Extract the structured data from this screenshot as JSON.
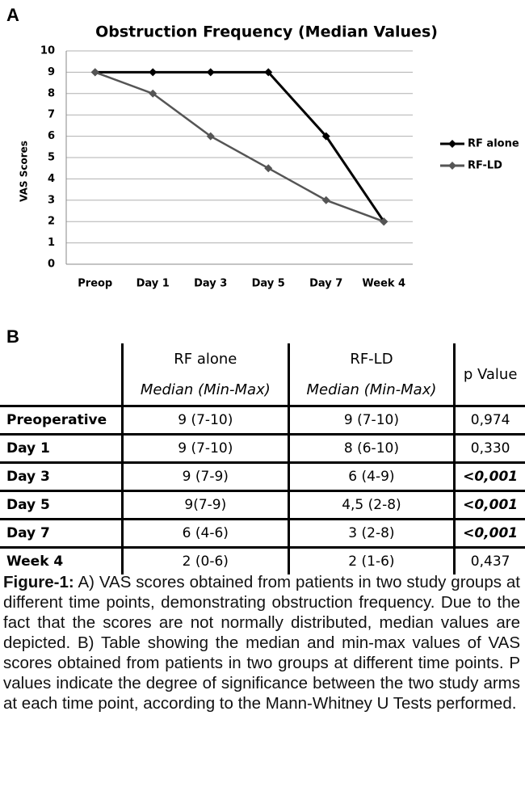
{
  "panel_a": "A",
  "chart_data": {
    "type": "line",
    "title": "Obstruction Frequency (Median Values)",
    "y_label": "VAS Scores",
    "categories": [
      "Preop",
      "Day 1",
      "Day 3",
      "Day 5",
      "Day 7",
      "Week 4"
    ],
    "series": [
      {
        "name": "RF alone",
        "color": "#000000",
        "values": [
          9,
          9,
          9,
          9,
          6,
          2
        ]
      },
      {
        "name": "RF-LD",
        "color": "#555555",
        "values": [
          9,
          8,
          6,
          4.5,
          3,
          2
        ]
      }
    ],
    "ylim": [
      0,
      10
    ],
    "yticks": [
      0,
      1,
      2,
      3,
      4,
      5,
      6,
      7,
      8,
      9,
      10
    ],
    "grid": true,
    "legend": "right"
  },
  "panel_b": "B",
  "table": {
    "columns": [
      "RF alone",
      "RF-LD",
      "p Value"
    ],
    "subheader": [
      "Median (Min-Max)",
      "Median (Min-Max)"
    ],
    "rows": [
      [
        "Preoperative",
        "9 (7-10)",
        "9 (7-10)",
        {
          "text": "0,974",
          "style": "normal"
        }
      ],
      [
        "Day 1",
        "9 (7-10)",
        "8 (6-10)",
        {
          "text": "0,330",
          "style": "normal"
        }
      ],
      [
        "Day 3",
        "9 (7-9)",
        "6 (4-9)",
        {
          "text": "<0,001",
          "style": "bold-italic"
        }
      ],
      [
        "Day 5",
        "9(7-9)",
        "4,5 (2-8)",
        {
          "text": "<0,001",
          "style": "bold-italic"
        }
      ],
      [
        "Day 7",
        "6 (4-6)",
        "3 (2-8)",
        {
          "text": "<0,001",
          "style": "bold-italic"
        }
      ],
      [
        "Week 4",
        "2 (0-6)",
        "2 (1-6)",
        {
          "text": "0,437",
          "style": "normal"
        }
      ]
    ]
  },
  "caption": {
    "label": "Figure-1:",
    "text": "A) VAS scores obtained from patients in two study groups at different time points, demonstrating obstruction frequency. Due to the fact that the scores are not normally distributed, median values are depicted. B) Table showing the median and min-max values of VAS scores obtained from patients in two groups at different time points. P values indicate the degree of significance between the two study arms at each time point, according to the Mann-Whitney U Tests performed."
  }
}
